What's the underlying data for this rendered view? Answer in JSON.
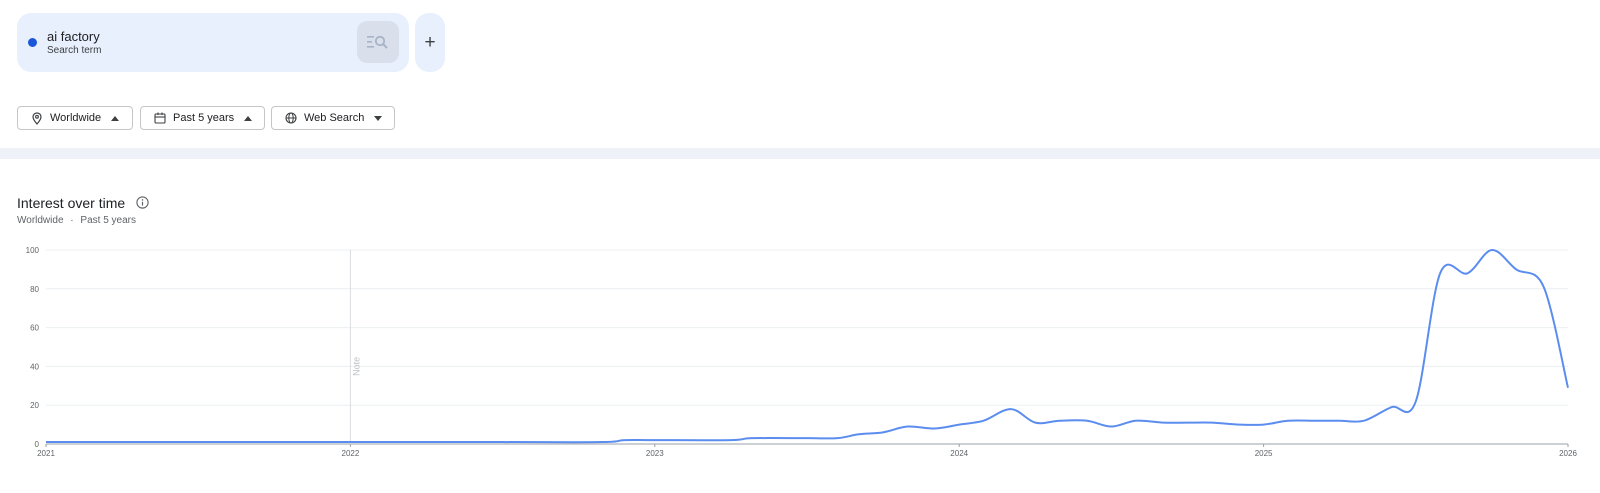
{
  "search_term": {
    "name": "ai factory",
    "type_label": "Search term",
    "color": "#1a56d6"
  },
  "add_button": {
    "label": "+"
  },
  "filters": {
    "region": {
      "label": "Worldwide",
      "icon": "location-pin-icon"
    },
    "time": {
      "label": "Past 5 years",
      "icon": "calendar-icon"
    },
    "property": {
      "label": "Web Search",
      "icon": "globe-icon"
    }
  },
  "section": {
    "title": "Interest over time",
    "subtitle_region": "Worldwide",
    "subtitle_separator": "·",
    "subtitle_range": "Past 5 years"
  },
  "chart_data": {
    "type": "line",
    "title": "",
    "xlabel": "",
    "ylabel": "",
    "ylim": [
      0,
      100
    ],
    "yticks": [
      0,
      20,
      40,
      60,
      80,
      100
    ],
    "xlim": [
      2021,
      2026
    ],
    "xticks": [
      "2021",
      "2022",
      "2023",
      "2024",
      "2025",
      "2026"
    ],
    "grid": true,
    "line_color": "#5b8def",
    "annotations": [
      {
        "x": 2022.0,
        "text": "Note"
      }
    ],
    "series": [
      {
        "x": [
          2021.0,
          2021.5,
          2022.0,
          2022.5,
          2022.83,
          2022.9,
          2023.0,
          2023.25,
          2023.32,
          2023.5,
          2023.6,
          2023.67,
          2023.75,
          2023.83,
          2023.92,
          2024.0,
          2024.08,
          2024.17,
          2024.25,
          2024.33,
          2024.42,
          2024.5,
          2024.58,
          2024.67,
          2024.75,
          2024.83,
          2024.92,
          2025.0,
          2025.08,
          2025.17,
          2025.25,
          2025.33,
          2025.42,
          2025.5,
          2025.58,
          2025.67,
          2025.75,
          2025.83,
          2025.92,
          2026.0
        ],
        "y": [
          1,
          1,
          1,
          1,
          1,
          2,
          2,
          2,
          3,
          3,
          3,
          5,
          6,
          9,
          8,
          10,
          12,
          18,
          11,
          12,
          12,
          9,
          12,
          11,
          11,
          11,
          10,
          10,
          12,
          12,
          12,
          12,
          19,
          22,
          88,
          88,
          100,
          90,
          81,
          29
        ]
      }
    ]
  }
}
